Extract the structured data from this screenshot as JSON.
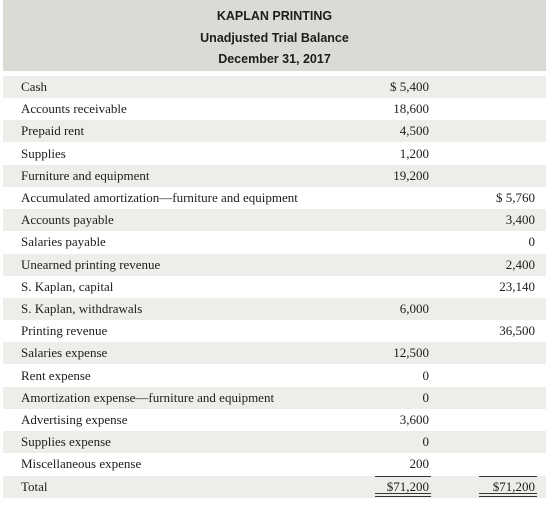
{
  "header": {
    "company": "KAPLAN PRINTING",
    "report": "Unadjusted Trial Balance",
    "date": "December 31, 2017"
  },
  "rows": [
    {
      "account": "Cash",
      "debit": "$ 5,400",
      "credit": ""
    },
    {
      "account": "Accounts receivable",
      "debit": "18,600",
      "credit": ""
    },
    {
      "account": "Prepaid rent",
      "debit": "4,500",
      "credit": ""
    },
    {
      "account": "Supplies",
      "debit": "1,200",
      "credit": ""
    },
    {
      "account": "Furniture and equipment",
      "debit": "19,200",
      "credit": ""
    },
    {
      "account": "Accumulated amortization—furniture and equipment",
      "debit": "",
      "credit": "$ 5,760"
    },
    {
      "account": "Accounts payable",
      "debit": "",
      "credit": "3,400"
    },
    {
      "account": "Salaries payable",
      "debit": "",
      "credit": "0"
    },
    {
      "account": "Unearned printing revenue",
      "debit": "",
      "credit": "2,400"
    },
    {
      "account": "S. Kaplan, capital",
      "debit": "",
      "credit": "23,140"
    },
    {
      "account": "S. Kaplan, withdrawals",
      "debit": "6,000",
      "credit": ""
    },
    {
      "account": "Printing revenue",
      "debit": "",
      "credit": "36,500"
    },
    {
      "account": "Salaries expense",
      "debit": "12,500",
      "credit": ""
    },
    {
      "account": "Rent expense",
      "debit": "0",
      "credit": ""
    },
    {
      "account": "Amortization expense—furniture and equipment",
      "debit": "0",
      "credit": ""
    },
    {
      "account": "Advertising expense",
      "debit": "3,600",
      "credit": ""
    },
    {
      "account": "Supplies expense",
      "debit": "0",
      "credit": ""
    },
    {
      "account": "Miscellaneous expense",
      "debit": "200",
      "credit": ""
    },
    {
      "account": "Total",
      "debit": "$71,200",
      "credit": "$71,200"
    }
  ]
}
